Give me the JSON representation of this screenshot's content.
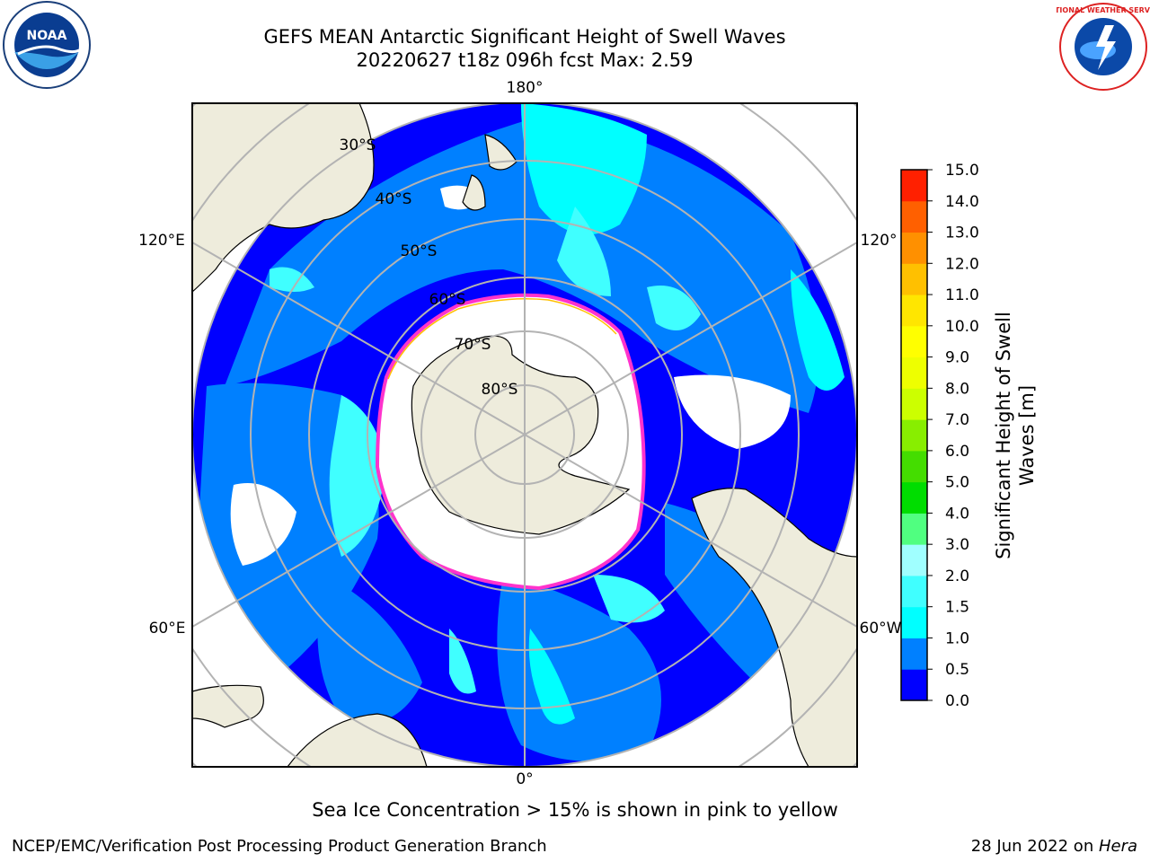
{
  "header": {
    "title_line1": "GEFS MEAN Antarctic Significant Height of Swell Waves",
    "title_line2": "20220627 t18z 096h fcst   Max: 2.59"
  },
  "logos": {
    "left": "noaa-logo",
    "right": "national-weather-service-logo",
    "left_text": "NOAA",
    "right_text": "NATIONAL WEATHER SERVICE"
  },
  "map": {
    "projection": "south-polar-stereographic",
    "longitude_labels": [
      "180°",
      "120°E",
      "120°",
      "60°E",
      "60°W",
      "0°"
    ],
    "latitude_labels": [
      "30°S",
      "40°S",
      "50°S",
      "60°S",
      "70°S",
      "80°S"
    ],
    "colors": {
      "land": "#eeecdc",
      "ice": "#ffffff",
      "ice_edge": "#ff33cc",
      "gridlines": "#b3b3b3"
    }
  },
  "colorbar": {
    "label": "Significant Height of Swell Waves [m]",
    "ticks": [
      "15.0",
      "14.0",
      "13.0",
      "12.0",
      "11.0",
      "10.0",
      "9.0",
      "8.0",
      "7.0",
      "6.0",
      "5.0",
      "4.0",
      "3.0",
      "2.0",
      "1.5",
      "1.0",
      "0.5",
      "0.0"
    ],
    "colors": [
      "#0000ff",
      "#0080ff",
      "#00ffff",
      "#40ffff",
      "#a0ffff",
      "#50ff80",
      "#00dd00",
      "#44dd00",
      "#88ee00",
      "#ccff00",
      "#eeff00",
      "#ffff00",
      "#ffe600",
      "#ffc000",
      "#ff9000",
      "#ff6000",
      "#ff2000"
    ]
  },
  "footer": {
    "note": "Sea Ice Concentration > 15% is shown in pink to yellow",
    "credit": "NCEP/EMC/Verification Post Processing Product Generation Branch",
    "date": "28 Jun 2022 on ",
    "host": "Hera"
  }
}
